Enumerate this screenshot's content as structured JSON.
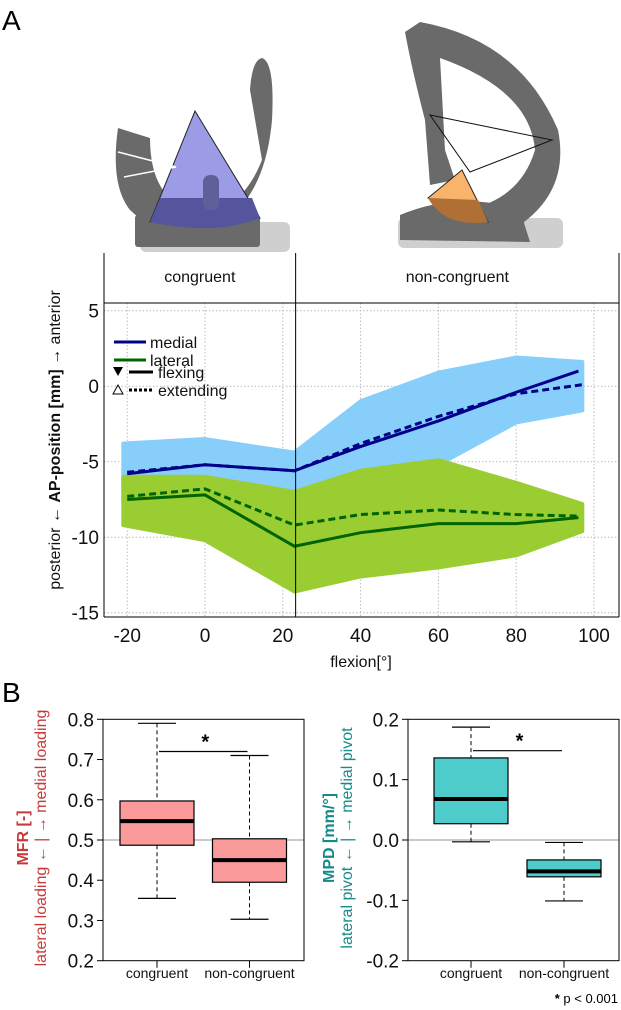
{
  "panel_labels": {
    "a": "A",
    "b": "B"
  },
  "colors": {
    "medial_line": "#00008b",
    "lateral_line": "#006400",
    "medial_points": "#87cefa",
    "lateral_points": "#9acd32",
    "mfr_box": "#fa9a9a",
    "mpd_box": "#4ecccc",
    "mfr_label": "#c83a3a",
    "mpd_label": "#168a8a"
  },
  "chart_data": [
    {
      "type": "line",
      "facets": [
        "congruent",
        "non-congruent"
      ],
      "facet_boundary_x": 23.3,
      "xlabel": "flexion[°]",
      "ylabel": {
        "left": "posterior ← ",
        "bold": "AP-position [mm]",
        "right": " → anterior"
      },
      "xlim": [
        -25,
        105
      ],
      "ylim": [
        -15.5,
        5.5
      ],
      "xticks": [
        -20,
        0,
        20,
        40,
        60,
        80,
        100
      ],
      "yticks": [
        -15,
        -10,
        -5,
        0,
        5
      ],
      "grid": true,
      "legend": {
        "position": "top-left",
        "compartments": [
          {
            "label": "medial",
            "color": "#00008b"
          },
          {
            "label": "lateral",
            "color": "#006400"
          }
        ],
        "directions": [
          {
            "label": "flexing",
            "marker": "filled-triangle-down",
            "line": "solid"
          },
          {
            "label": "extending",
            "marker": "open-triangle-up",
            "line": "dotted"
          }
        ]
      },
      "series": [
        {
          "name": "medial",
          "direction": "flexing",
          "x": [
            -20,
            0,
            23,
            40,
            60,
            80,
            96
          ],
          "y": [
            -5.8,
            -5.2,
            -5.6,
            -4.0,
            -2.3,
            -0.4,
            1.0
          ]
        },
        {
          "name": "medial",
          "direction": "extending",
          "x": [
            -20,
            0,
            23,
            40,
            60,
            80,
            97
          ],
          "y": [
            -5.7,
            -5.2,
            -5.6,
            -3.8,
            -2.0,
            -0.5,
            0.1
          ]
        },
        {
          "name": "lateral",
          "direction": "flexing",
          "x": [
            -20,
            0,
            23,
            40,
            60,
            80,
            96
          ],
          "y": [
            -7.5,
            -7.2,
            -10.6,
            -9.7,
            -9.1,
            -9.1,
            -8.7
          ]
        },
        {
          "name": "lateral",
          "direction": "extending",
          "x": [
            -20,
            0,
            23,
            40,
            60,
            80,
            96
          ],
          "y": [
            -7.3,
            -6.8,
            -9.2,
            -8.5,
            -8.2,
            -8.5,
            -8.6
          ]
        }
      ],
      "point_clouds": [
        {
          "name": "medial",
          "x": [
            -21,
            0,
            23,
            40,
            60,
            80,
            97
          ],
          "lower": [
            -7.6,
            -7.2,
            -7.8,
            -6.6,
            -5.2,
            -2.4,
            -1.6
          ],
          "upper": [
            -3.8,
            -3.5,
            -4.4,
            -1.0,
            0.9,
            1.9,
            1.6
          ]
        },
        {
          "name": "lateral",
          "x": [
            -21,
            0,
            23,
            40,
            60,
            80,
            97
          ],
          "lower": [
            -9.2,
            -10.2,
            -13.6,
            -12.6,
            -12.0,
            -11.2,
            -9.6
          ],
          "upper": [
            -6.0,
            -6.0,
            -7.0,
            -5.6,
            -4.9,
            -6.4,
            -7.8
          ]
        }
      ]
    },
    {
      "type": "box",
      "categories": [
        "congruent",
        "non-congruent"
      ],
      "ylabel": {
        "bold": "MFR [-]",
        "sub": "lateral loading ← | → medial loading"
      },
      "ylim": [
        0.2,
        0.8
      ],
      "yticks": [
        "0.2",
        "0.3",
        "0.4",
        "0.5",
        "0.6",
        "0.7",
        "0.8"
      ],
      "reference_line": 0.5,
      "boxes": [
        {
          "whisker_low": 0.355,
          "q1": 0.487,
          "median": 0.547,
          "q3": 0.597,
          "whisker_high": 0.79
        },
        {
          "whisker_low": 0.303,
          "q1": 0.395,
          "median": 0.45,
          "q3": 0.503,
          "whisker_high": 0.71
        }
      ],
      "significance": {
        "y": 0.72,
        "label": "*"
      }
    },
    {
      "type": "box",
      "categories": [
        "congruent",
        "non-congruent"
      ],
      "ylabel": {
        "bold": "MPD [mm/°]",
        "sub": "lateral pivot ← | → medial pivot"
      },
      "ylim": [
        -0.2,
        0.2
      ],
      "yticks": [
        "-0.2",
        "-0.1",
        "0.0",
        "0.1",
        "0.2"
      ],
      "reference_line": 0.0,
      "boxes": [
        {
          "whisker_low": -0.003,
          "q1": 0.027,
          "median": 0.068,
          "q3": 0.136,
          "whisker_high": 0.187
        },
        {
          "whisker_low": -0.101,
          "q1": -0.061,
          "median": -0.052,
          "q3": -0.033,
          "whisker_high": -0.004
        }
      ],
      "significance": {
        "y": 0.148,
        "label": "*"
      }
    }
  ],
  "footnote": {
    "star": "*",
    "text": " p < 0.001"
  }
}
